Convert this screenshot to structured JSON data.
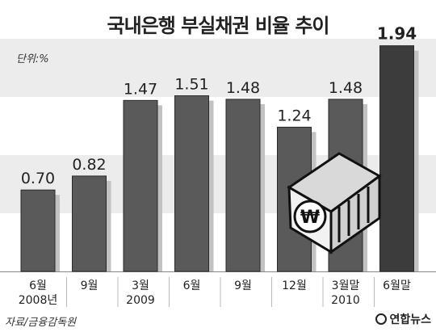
{
  "title": "국내은행 부실채권 비율 추이",
  "unit_label": "단위:%",
  "source": "자료/금융감독원",
  "logo_text": "연합뉴스",
  "colors": {
    "background": "#ffffff",
    "band": "#ececec",
    "bar": "#5a5a5a",
    "bar_highlight": "#3c3c3c",
    "bar_shadow": "#c2c2c2",
    "text": "#222222"
  },
  "chart_data": {
    "type": "bar",
    "categories": [
      {
        "lines": [
          "6월",
          "2008년"
        ]
      },
      {
        "lines": [
          "9월"
        ]
      },
      {
        "lines": [
          "3월",
          "2009"
        ]
      },
      {
        "lines": [
          "6월"
        ]
      },
      {
        "lines": [
          "9월"
        ]
      },
      {
        "lines": [
          "12월"
        ]
      },
      {
        "lines": [
          "3월말",
          "2010"
        ]
      },
      {
        "lines": [
          "6월말"
        ]
      }
    ],
    "values": [
      0.7,
      0.82,
      1.47,
      1.51,
      1.48,
      1.24,
      1.48,
      1.94
    ],
    "labels": [
      "0.70",
      "0.82",
      "1.47",
      "1.51",
      "1.48",
      "1.24",
      "1.48",
      "1.94"
    ],
    "highlight_index": 7,
    "ylim": [
      0,
      2.0
    ],
    "xlabel": "",
    "ylabel": "",
    "grid": false
  }
}
